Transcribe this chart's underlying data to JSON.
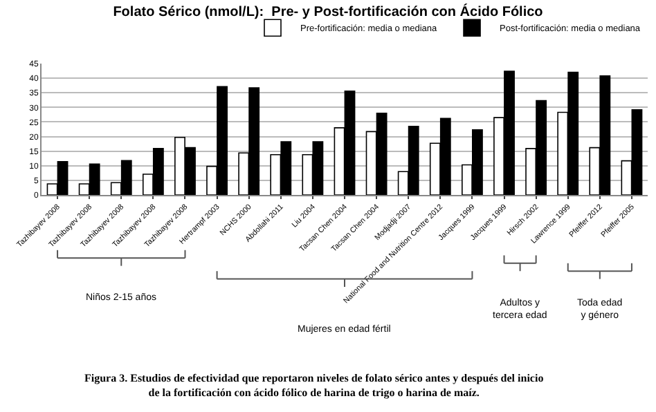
{
  "chart_data": {
    "type": "bar",
    "title": "Folato Sérico (nmol/L):  Pre- y Post-fortificación con Ácido Fólico",
    "categories": [
      "Tazhibayev 2008",
      "Tazhibayev 2008",
      "Tazhibayev 2008",
      "Tazhibayev 2008",
      "Tazhibayev 2008",
      "Hertrampf 2003",
      "NCHS 2000",
      "Abdollahi 2011",
      "Liu 2004",
      "Tacsan Chen 2004",
      "Tacsan Chen 2004",
      "Modjadji 2007",
      "National Food and Nutrition Centre 2012",
      "Jacques 1999",
      "Jacques 1999",
      "Hirsch 2002",
      "Lawrence 1999",
      "Pfeiffer 2012",
      "Pfeiffer 2005"
    ],
    "series": [
      {
        "name": "Pre-fortificación: media o mediana",
        "color": "#ffffff",
        "values": [
          3.8,
          3.8,
          4.2,
          7.1,
          19.7,
          9.8,
          14.4,
          13.8,
          13.8,
          23,
          21.7,
          8,
          17.7,
          10.3,
          26.5,
          15.9,
          28.3,
          16.2,
          11.7
        ]
      },
      {
        "name": "Post-fortificación: media o mediana",
        "color": "#000000",
        "values": [
          11.4,
          10.6,
          11.8,
          15.9,
          16.2,
          37.1,
          36.7,
          18.2,
          18.2,
          35.6,
          28,
          23.5,
          26.2,
          22.3,
          42.4,
          32.3,
          42,
          40.8,
          29.2
        ]
      }
    ],
    "ylim": [
      0,
      45
    ],
    "yticks": [
      0,
      5,
      10,
      15,
      20,
      25,
      30,
      35,
      40,
      45
    ],
    "grid": "y",
    "legend": "top right",
    "annotations": [
      "Niños 2-15 años",
      "Mujeres en edad fértil",
      "Adultos y tercera edad",
      "Toda edad y género",
      "Figura 3. Estudios de efectividad que reportaron niveles de folato sérico antes y después del inicio de la fortificación con ácido fólico de harina de trigo o harina de maíz."
    ]
  }
}
